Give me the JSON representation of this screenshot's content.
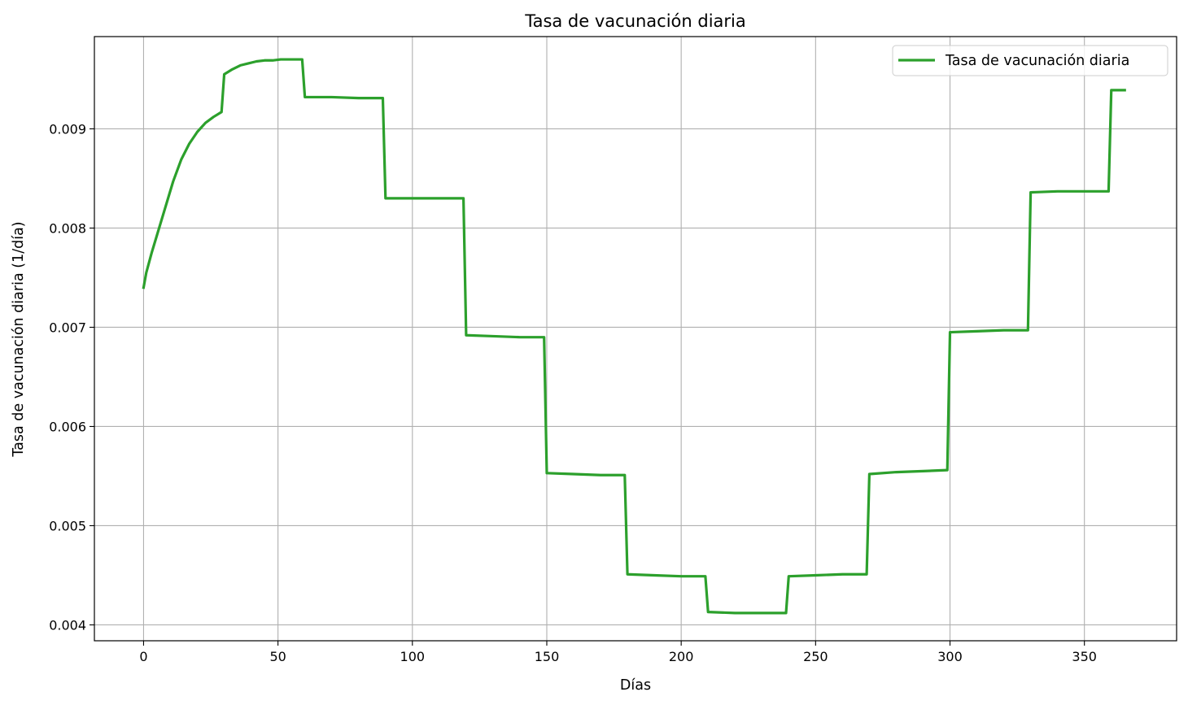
{
  "chart_data": {
    "type": "line",
    "title": "Tasa de vacunación diaria",
    "xlabel": "Días",
    "ylabel": "Tasa de vacunación diaria (1/día)",
    "xlim": [
      -18.3,
      384.3
    ],
    "ylim": [
      0.00384,
      0.00993
    ],
    "x_ticks": [
      0,
      50,
      100,
      150,
      200,
      250,
      300,
      350
    ],
    "y_ticks": [
      0.004,
      0.005,
      0.006,
      0.007,
      0.008,
      0.009
    ],
    "x_tick_labels": [
      "0",
      "50",
      "100",
      "150",
      "200",
      "250",
      "300",
      "350"
    ],
    "y_tick_labels": [
      "0.004",
      "0.005",
      "0.006",
      "0.007",
      "0.008",
      "0.009"
    ],
    "grid": true,
    "legend_position": "top-right",
    "series": [
      {
        "name": "Tasa de vacunación diaria",
        "color": "#2ca02c",
        "x": [
          0,
          1,
          3,
          5,
          8,
          11,
          14,
          17,
          20,
          23,
          26,
          29,
          30,
          33,
          36,
          39,
          42,
          45,
          48,
          51,
          54,
          57,
          59,
          60,
          70,
          80,
          89,
          90,
          100,
          110,
          119,
          120,
          130,
          140,
          149,
          150,
          160,
          170,
          179,
          180,
          190,
          200,
          209,
          210,
          220,
          230,
          239,
          240,
          250,
          260,
          269,
          270,
          280,
          290,
          299,
          300,
          310,
          320,
          329,
          330,
          340,
          350,
          359,
          360,
          365
        ],
        "y": [
          0.0074,
          0.00755,
          0.00775,
          0.00793,
          0.0082,
          0.00847,
          0.00869,
          0.00885,
          0.00897,
          0.00906,
          0.00912,
          0.00917,
          0.00955,
          0.0096,
          0.00964,
          0.00966,
          0.00968,
          0.00969,
          0.00969,
          0.0097,
          0.0097,
          0.0097,
          0.0097,
          0.00932,
          0.00932,
          0.00931,
          0.00931,
          0.0083,
          0.0083,
          0.0083,
          0.0083,
          0.00692,
          0.00691,
          0.0069,
          0.0069,
          0.00553,
          0.00552,
          0.00551,
          0.00551,
          0.00451,
          0.0045,
          0.00449,
          0.00449,
          0.00413,
          0.00412,
          0.00412,
          0.00412,
          0.00449,
          0.0045,
          0.00451,
          0.00451,
          0.00552,
          0.00554,
          0.00555,
          0.00556,
          0.00695,
          0.00696,
          0.00697,
          0.00697,
          0.00836,
          0.00837,
          0.00837,
          0.00837,
          0.00939,
          0.00939
        ]
      }
    ]
  }
}
